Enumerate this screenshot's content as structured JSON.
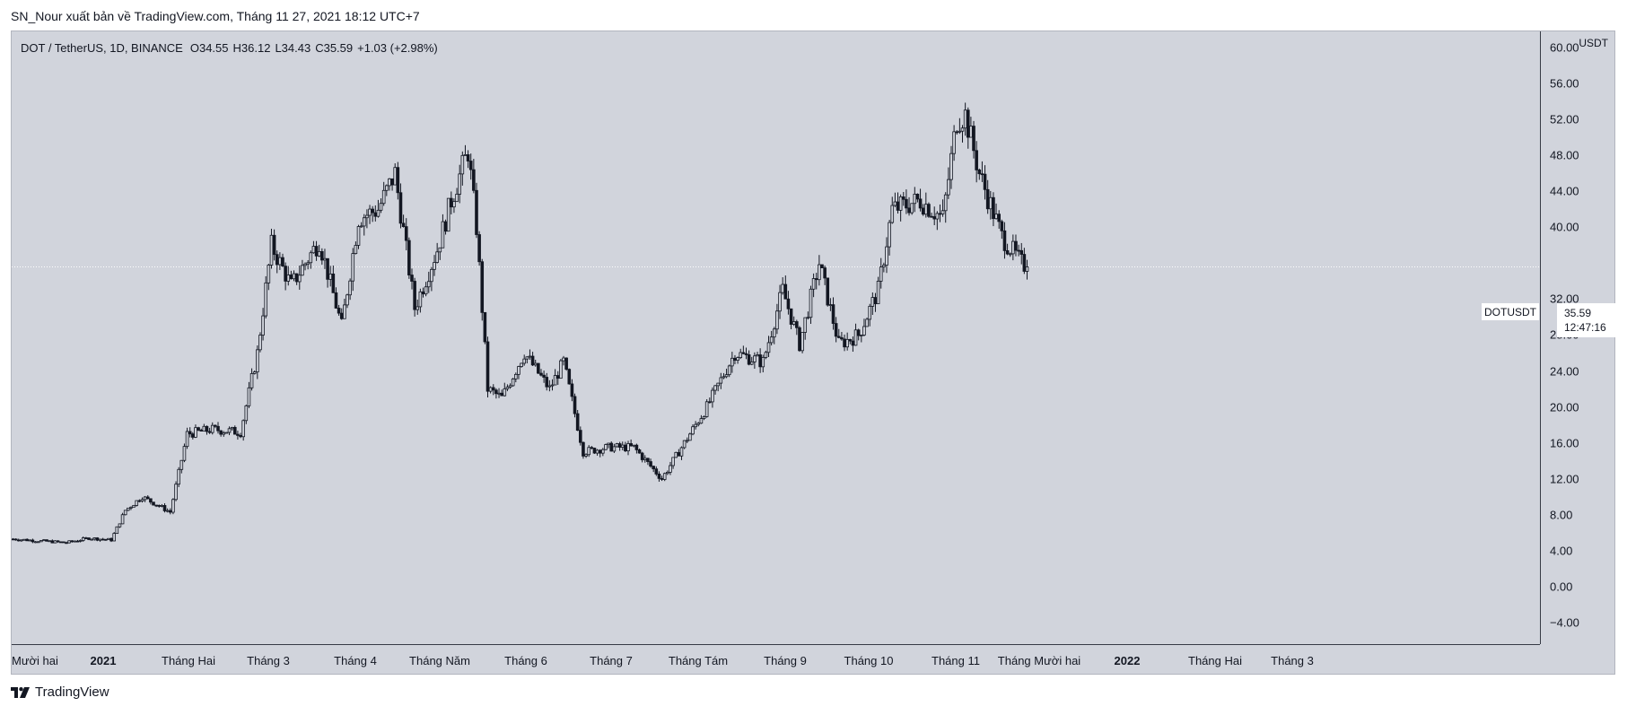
{
  "header": {
    "published_by": "SN_Nour xuất bản về TradingView.com, Tháng 11 27, 2021 18:12 UTC+7"
  },
  "legend": {
    "symbol_line": "DOT / TetherUS, 1D, BINANCE",
    "open": "O34.55",
    "high": "H36.12",
    "low": "L34.43",
    "close": "C35.59",
    "change": "+1.03 (+2.98%)"
  },
  "price_axis": {
    "unit": "USDT",
    "ticks": [
      "60.00",
      "56.00",
      "52.00",
      "48.00",
      "44.00",
      "40.00",
      "32.00",
      "28.00",
      "24.00",
      "20.00",
      "16.00",
      "12.00",
      "8.00",
      "4.00",
      "0.00",
      "−4.00"
    ]
  },
  "time_axis": {
    "labels": [
      "Mười hai",
      "2021",
      "Tháng Hai",
      "Tháng 3",
      "Tháng 4",
      "Tháng Năm",
      "Tháng 6",
      "Tháng 7",
      "Tháng Tám",
      "Tháng 9",
      "Tháng 10",
      "Tháng 11",
      "Tháng Mười hai",
      "2022",
      "Tháng Hai",
      "Tháng 3"
    ]
  },
  "last_price": {
    "symbol": "DOTUSDT",
    "value": "35.59",
    "countdown": "12:47:16"
  },
  "branding": {
    "logo_text": "TradingView",
    "logo_icon": "tradingview-logo-icon"
  },
  "colors": {
    "background": "#d1d4dc",
    "candle": "#131722",
    "price_line": "#ffffff"
  },
  "chart_data": {
    "type": "candlestick",
    "title": "DOT / TetherUS, 1D, BINANCE",
    "ylabel": "USDT",
    "ylim": [
      -6.4,
      61.8
    ],
    "interval": "1D",
    "x_range": [
      "2020-12-01",
      "2021-11-27"
    ],
    "last_close": 35.59,
    "approx_close_path": [
      [
        "2020-12-01",
        5.3
      ],
      [
        "2020-12-10",
        5.1
      ],
      [
        "2020-12-20",
        4.9
      ],
      [
        "2020-12-28",
        5.4
      ],
      [
        "2021-01-05",
        5.2
      ],
      [
        "2021-01-10",
        8.5
      ],
      [
        "2021-01-16",
        10.0
      ],
      [
        "2021-01-26",
        8.3
      ],
      [
        "2021-02-01",
        17.0
      ],
      [
        "2021-02-10",
        17.5
      ],
      [
        "2021-02-20",
        17.2
      ],
      [
        "2021-02-26",
        26.0
      ],
      [
        "2021-03-03",
        38.0
      ],
      [
        "2021-03-10",
        33.5
      ],
      [
        "2021-03-20",
        38.5
      ],
      [
        "2021-03-28",
        29.0
      ],
      [
        "2021-04-03",
        41.0
      ],
      [
        "2021-04-10",
        42.0
      ],
      [
        "2021-04-16",
        46.0
      ],
      [
        "2021-04-23",
        31.0
      ],
      [
        "2021-05-01",
        37.5
      ],
      [
        "2021-05-06",
        43.0
      ],
      [
        "2021-05-12",
        48.5
      ],
      [
        "2021-05-15",
        40.0
      ],
      [
        "2021-05-19",
        22.0
      ],
      [
        "2021-05-24",
        21.0
      ],
      [
        "2021-06-01",
        26.0
      ],
      [
        "2021-06-10",
        22.0
      ],
      [
        "2021-06-15",
        25.0
      ],
      [
        "2021-06-22",
        15.0
      ],
      [
        "2021-07-01",
        15.5
      ],
      [
        "2021-07-10",
        15.5
      ],
      [
        "2021-07-20",
        12.0
      ],
      [
        "2021-07-26",
        15.0
      ],
      [
        "2021-08-05",
        20.0
      ],
      [
        "2021-08-15",
        26.0
      ],
      [
        "2021-08-25",
        25.0
      ],
      [
        "2021-09-01",
        33.0
      ],
      [
        "2021-09-07",
        27.0
      ],
      [
        "2021-09-14",
        36.0
      ],
      [
        "2021-09-21",
        27.0
      ],
      [
        "2021-09-28",
        28.0
      ],
      [
        "2021-10-05",
        33.0
      ],
      [
        "2021-10-10",
        42.0
      ],
      [
        "2021-10-20",
        43.0
      ],
      [
        "2021-10-28",
        41.0
      ],
      [
        "2021-11-02",
        52.0
      ],
      [
        "2021-11-05",
        52.5
      ],
      [
        "2021-11-10",
        46.0
      ],
      [
        "2021-11-18",
        39.0
      ],
      [
        "2021-11-25",
        36.0
      ],
      [
        "2021-11-27",
        35.59
      ]
    ]
  }
}
